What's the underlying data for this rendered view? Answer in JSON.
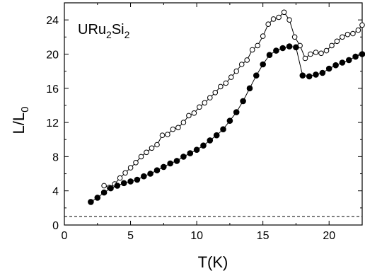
{
  "chart_data": {
    "type": "scatter",
    "annotation": {
      "main": "URu",
      "sub1": "2",
      "mid": "Si",
      "sub2": "2"
    },
    "xlabel": "T(K)",
    "ylabel": {
      "main": "L/L",
      "sub": "0"
    },
    "xlim": [
      0,
      22.5
    ],
    "ylim": [
      0,
      26
    ],
    "xticks": [
      0,
      5,
      10,
      15,
      20
    ],
    "yticks": [
      0,
      4,
      8,
      12,
      16,
      20,
      24
    ],
    "reference_line": {
      "y": 1,
      "style": "dashed"
    },
    "grid": false,
    "series": [
      {
        "marker": "open-circle",
        "connected": true,
        "x": [
          3.0,
          3.4,
          3.8,
          4.2,
          4.6,
          5.0,
          5.4,
          5.8,
          6.2,
          6.6,
          7.0,
          7.4,
          7.8,
          8.2,
          8.6,
          9.0,
          9.4,
          9.8,
          10.2,
          10.6,
          11.0,
          11.4,
          11.8,
          12.2,
          12.6,
          13.0,
          13.4,
          13.8,
          14.2,
          14.6,
          15.0,
          15.4,
          15.8,
          16.2,
          16.6,
          17.0,
          17.4,
          17.8,
          18.2,
          18.6,
          19.0,
          19.4,
          19.8,
          20.2,
          20.6,
          21.0,
          21.4,
          21.8,
          22.2,
          22.5
        ],
        "y": [
          4.6,
          4.4,
          4.8,
          5.5,
          6.1,
          6.7,
          7.3,
          8.0,
          8.5,
          9.0,
          9.4,
          10.5,
          10.6,
          11.2,
          11.4,
          12.0,
          12.8,
          13.1,
          13.8,
          14.3,
          14.9,
          15.5,
          16.2,
          16.6,
          17.3,
          18.0,
          18.8,
          19.3,
          20.5,
          21.0,
          22.1,
          23.5,
          24.1,
          24.3,
          24.9,
          24.0,
          22.0,
          21.0,
          19.5,
          20.0,
          20.2,
          20.1,
          20.4,
          21.0,
          21.5,
          22.0,
          22.3,
          22.4,
          22.8,
          23.4
        ]
      },
      {
        "marker": "filled-circle",
        "connected": true,
        "x": [
          2.0,
          2.5,
          3.0,
          3.5,
          4.0,
          4.5,
          5.0,
          5.5,
          6.0,
          6.5,
          7.0,
          7.5,
          8.0,
          8.5,
          9.0,
          9.5,
          10.0,
          10.5,
          11.0,
          11.5,
          12.0,
          12.5,
          13.0,
          13.5,
          14.0,
          14.5,
          15.0,
          15.5,
          16.0,
          16.5,
          17.0,
          17.5,
          18.0,
          18.5,
          19.0,
          19.5,
          20.0,
          20.5,
          21.0,
          21.5,
          22.0,
          22.5
        ],
        "y": [
          2.7,
          3.2,
          3.8,
          4.3,
          4.6,
          4.9,
          5.1,
          5.3,
          5.7,
          6.0,
          6.4,
          6.8,
          7.2,
          7.5,
          8.0,
          8.4,
          8.8,
          9.3,
          9.9,
          10.5,
          11.2,
          12.2,
          13.2,
          14.5,
          16.0,
          17.5,
          18.8,
          19.9,
          20.4,
          20.7,
          20.9,
          20.8,
          17.5,
          17.4,
          17.6,
          17.8,
          18.3,
          18.7,
          19.0,
          19.3,
          19.7,
          20.0
        ]
      }
    ]
  }
}
